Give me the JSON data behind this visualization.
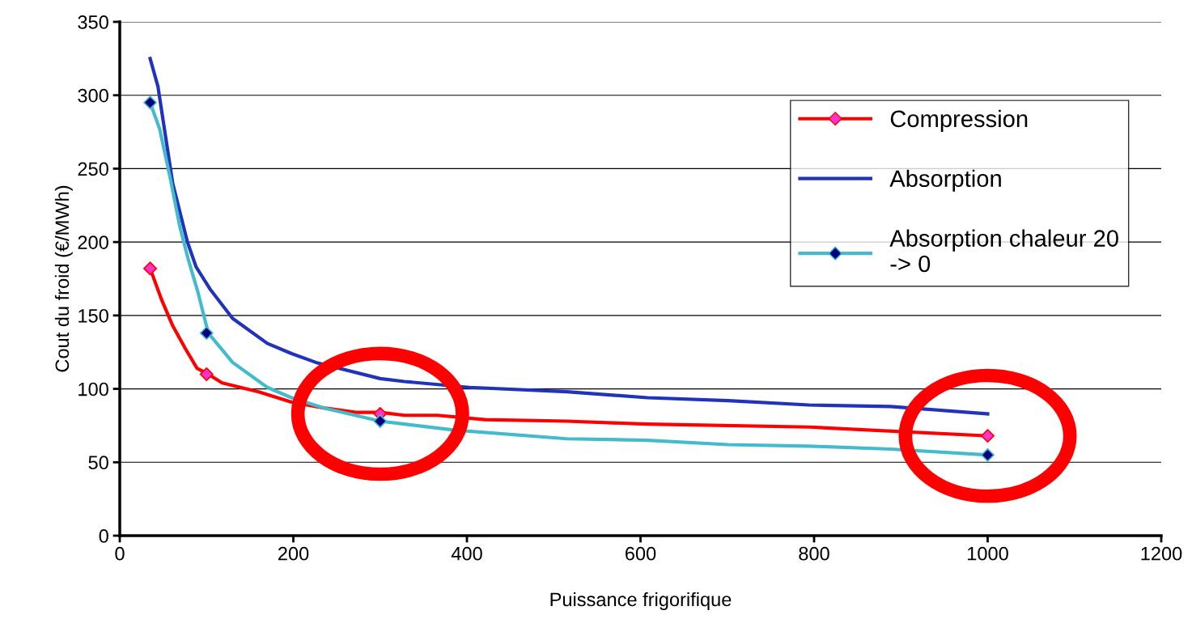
{
  "chart_data": {
    "type": "line",
    "xlabel": "Puissance frigorifique",
    "ylabel": "Cout du froid (€/MWh)",
    "xlim": [
      0,
      1200
    ],
    "xticks": [
      0,
      200,
      400,
      600,
      800,
      1000,
      1200
    ],
    "ylim": [
      0,
      350
    ],
    "yticks": [
      0,
      50,
      100,
      150,
      200,
      250,
      300,
      350
    ],
    "grid": "y",
    "legend": "top right",
    "line_style": "solid",
    "series": [
      {
        "name": "Compression",
        "color": "#ff0000",
        "x": [
          35,
          48,
          61,
          75,
          89,
          102,
          118,
          160,
          198,
          235,
          272,
          300,
          328,
          366,
          421,
          515,
          608,
          794,
          1000
        ],
        "values": [
          182,
          161,
          143,
          128,
          114,
          110,
          104,
          98,
          91,
          87,
          84,
          84,
          82,
          82,
          79,
          78,
          76,
          74,
          68
        ]
      },
      {
        "type": "scatter",
        "color": "#ff33cc",
        "marker": "diamond",
        "x": [
          35,
          100,
          300,
          1000
        ],
        "values": [
          182,
          110,
          83,
          68
        ]
      },
      {
        "name": "Absorption",
        "color": "#2233bb",
        "x": [
          35,
          44,
          61,
          78,
          88,
          104,
          130,
          170,
          198,
          226,
          300,
          328,
          403,
          515,
          608,
          701,
          794,
          888,
          1000
        ],
        "values": [
          325,
          306,
          240,
          200,
          183,
          168,
          148,
          131,
          124,
          118,
          107,
          105,
          101,
          98,
          94,
          92,
          89,
          88,
          83
        ]
      },
      {
        "name": "Absorption chaleur 20\n-> 0",
        "color": "#44bbcc",
        "x": [
          35,
          46,
          58,
          69,
          79,
          90,
          102,
          130,
          170,
          198,
          235,
          300,
          328,
          384,
          515,
          608,
          701,
          794,
          888,
          1000
        ],
        "values": [
          295,
          277,
          244,
          211,
          188,
          166,
          138,
          118,
          101,
          94,
          87,
          78,
          76,
          72,
          66,
          65,
          62,
          61,
          59,
          55
        ]
      },
      {
        "type": "scatter",
        "color": "#000080",
        "marker": "diamond",
        "x": [
          35,
          100,
          300,
          1000
        ],
        "values": [
          295,
          138,
          78,
          55
        ]
      }
    ]
  }
}
